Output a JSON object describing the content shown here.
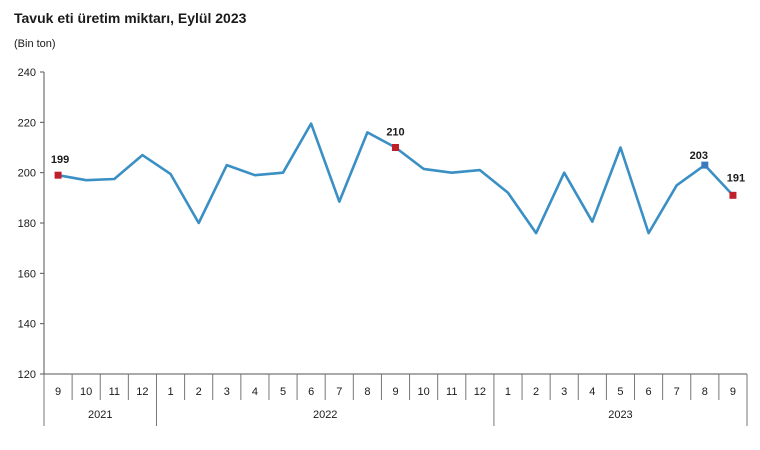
{
  "chart_data": {
    "type": "line",
    "title": "Tavuk eti üretim miktarı, Eylül 2023",
    "ylabel": "(Bin ton)",
    "ylim": [
      120,
      240
    ],
    "yticks": [
      120,
      140,
      160,
      180,
      200,
      220,
      240
    ],
    "grid": false,
    "categories": [
      "9",
      "10",
      "11",
      "12",
      "1",
      "2",
      "3",
      "4",
      "5",
      "6",
      "7",
      "8",
      "9",
      "10",
      "11",
      "12",
      "1",
      "2",
      "3",
      "4",
      "5",
      "6",
      "7",
      "8",
      "9"
    ],
    "year_groups": [
      {
        "label": "2021",
        "count": 4
      },
      {
        "label": "2022",
        "count": 12
      },
      {
        "label": "2023",
        "count": 9
      }
    ],
    "series": [
      {
        "values": [
          199,
          197,
          197.5,
          207,
          199.5,
          180,
          203,
          199,
          200,
          219.5,
          188.5,
          216,
          210,
          201.5,
          200,
          201,
          192,
          176,
          200,
          180.5,
          210,
          176,
          195,
          203,
          191
        ]
      }
    ],
    "data_labels": [
      {
        "index": 0,
        "text": "199"
      },
      {
        "index": 12,
        "text": "210"
      },
      {
        "index": 23,
        "text": "203"
      },
      {
        "index": 24,
        "text": "191"
      }
    ],
    "line_color": "#3a8fc4",
    "highlight_color": "#c0202b",
    "last_marker_color": "#3a78c0"
  }
}
